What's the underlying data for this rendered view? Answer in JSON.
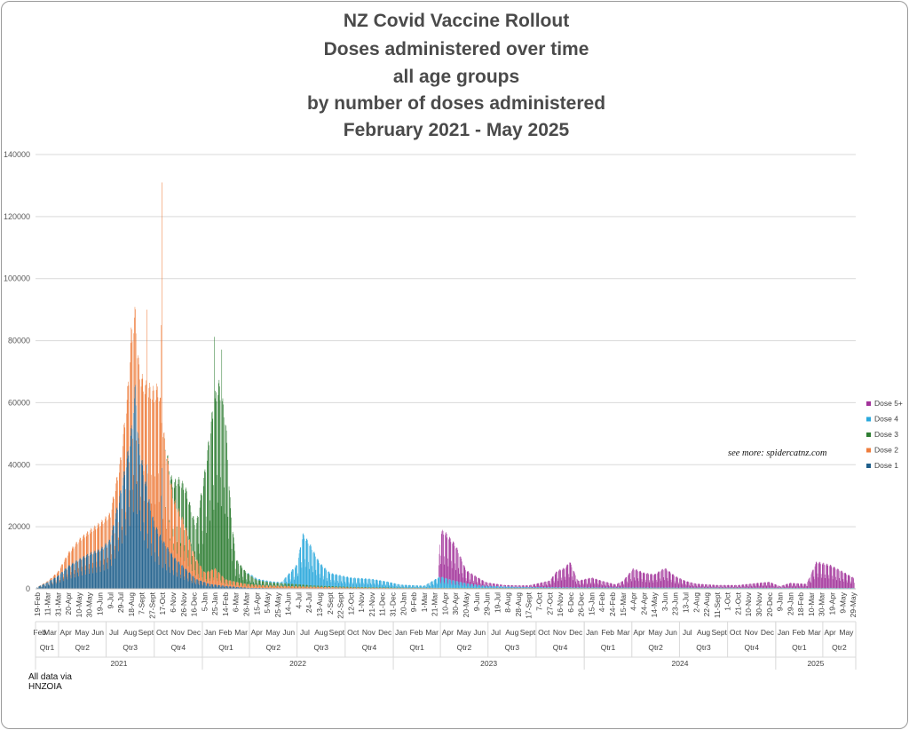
{
  "titles": {
    "line1": "NZ Covid Vaccine Rollout",
    "line2": "Doses administered over time",
    "line3": "all age groups",
    "line4": "by number of doses administered",
    "line5": "February 2021 - May 2025"
  },
  "credit": "see more: spidercatnz.com",
  "source_note": {
    "line1": "All data via",
    "line2": "HNZOIA"
  },
  "colors": {
    "Dose 1": "#1f5f8b",
    "Dose 2": "#ee7d3d",
    "Dose 3": "#2e7d32",
    "Dose 4": "#2aa8dc",
    "Dose 5+": "#a2329a"
  },
  "chart_data": {
    "type": "bar",
    "stacked": true,
    "title": "",
    "xlabel": "",
    "ylabel": "",
    "ylim": [
      0,
      140000
    ],
    "yticks": [
      0,
      20000,
      40000,
      60000,
      80000,
      100000,
      120000,
      140000
    ],
    "grid": "horizontal",
    "legend": "right",
    "series_order": [
      "Dose 1",
      "Dose 2",
      "Dose 3",
      "Dose 4",
      "Dose 5+"
    ],
    "legend_order": [
      "Dose 5+",
      "Dose 4",
      "Dose 3",
      "Dose 2",
      "Dose 1"
    ],
    "x_dates": [
      "2021-02-19",
      "2021-03-11",
      "2021-03-31",
      "2021-04-20",
      "2021-05-10",
      "2021-05-30",
      "2021-06-19",
      "2021-07-09",
      "2021-07-29",
      "2021-08-18",
      "2021-09-07",
      "2021-09-27",
      "2021-10-17",
      "2021-11-06",
      "2021-11-26",
      "2021-12-16",
      "2022-01-05",
      "2022-01-25",
      "2022-02-14",
      "2022-03-06",
      "2022-03-26",
      "2022-04-15",
      "2022-05-05",
      "2022-05-25",
      "2022-06-14",
      "2022-07-04",
      "2022-07-24",
      "2022-08-13",
      "2022-09-02",
      "2022-09-22",
      "2022-10-12",
      "2022-11-01",
      "2022-11-21",
      "2022-12-11",
      "2022-12-31",
      "2023-01-20",
      "2023-02-09",
      "2023-03-01",
      "2023-03-21",
      "2023-04-10",
      "2023-04-30",
      "2023-05-20",
      "2023-06-09",
      "2023-06-29",
      "2023-07-19",
      "2023-08-08",
      "2023-08-28",
      "2023-09-17",
      "2023-10-07",
      "2023-10-27",
      "2023-11-16",
      "2023-12-06",
      "2023-12-26",
      "2024-01-15",
      "2024-02-04",
      "2024-02-24",
      "2024-03-15",
      "2024-04-04",
      "2024-04-24",
      "2024-05-14",
      "2024-06-03",
      "2024-06-23",
      "2024-07-13",
      "2024-08-02",
      "2024-08-22",
      "2024-09-11",
      "2024-10-01",
      "2024-10-21",
      "2024-11-10",
      "2024-11-30",
      "2024-12-20",
      "2025-01-09",
      "2025-01-29",
      "2025-02-18",
      "2025-03-10",
      "2025-03-30",
      "2025-04-19",
      "2025-05-09",
      "2025-05-29"
    ],
    "x_ticks": [
      "19-Feb",
      "11-Mar",
      "31-Mar",
      "20-Apr",
      "10-May",
      "30-May",
      "19-Jun",
      "9-Jul",
      "29-Jul",
      "18-Aug",
      "7-Sept",
      "27-Sept",
      "17-Oct",
      "6-Nov",
      "26-Nov",
      "16-Dec",
      "5-Jan",
      "25-Jan",
      "14-Feb",
      "6-Mar",
      "26-Mar",
      "15-Apr",
      "5-May",
      "25-May",
      "14-Jun",
      "4-Jul",
      "24-Jul",
      "13-Aug",
      "2-Sept",
      "22-Sept",
      "12-Oct",
      "1-Nov",
      "21-Nov",
      "11-Dec",
      "31-Dec",
      "20-Jan",
      "9-Feb",
      "1-Mar",
      "21-Mar",
      "10-Apr",
      "30-Apr",
      "20-May",
      "9-Jun",
      "29-Jun",
      "19-Jul",
      "8-Aug",
      "28-Aug",
      "17-Sept",
      "7-Oct",
      "27-Oct",
      "16-Nov",
      "6-Dec",
      "26-Dec",
      "15-Jan",
      "4-Feb",
      "24-Feb",
      "15-Mar",
      "4-Apr",
      "24-Apr",
      "14-May",
      "3-Jun",
      "23-Jun",
      "13-Jul",
      "2-Aug",
      "22-Aug",
      "11-Sept",
      "1-Oct",
      "21-Oct",
      "10-Nov",
      "30-Nov",
      "20-Dec",
      "9-Jan",
      "29-Jan",
      "18-Feb",
      "10-Mar",
      "30-Mar",
      "19-Apr",
      "9-May",
      "29-May"
    ],
    "month_labels": [
      {
        "label": "Feb",
        "date": "2021-02-24"
      },
      {
        "label": "Mar",
        "date": "2021-03-16"
      },
      {
        "label": "Apr",
        "date": "2021-04-15"
      },
      {
        "label": "May",
        "date": "2021-05-16"
      },
      {
        "label": "Jun",
        "date": "2021-06-15"
      },
      {
        "label": "Jul",
        "date": "2021-07-16"
      },
      {
        "label": "Aug",
        "date": "2021-08-16"
      },
      {
        "label": "Sept",
        "date": "2021-09-15"
      },
      {
        "label": "Oct",
        "date": "2021-10-16"
      },
      {
        "label": "Nov",
        "date": "2021-11-15"
      },
      {
        "label": "Dec",
        "date": "2021-12-16"
      },
      {
        "label": "Jan",
        "date": "2022-01-16"
      },
      {
        "label": "Feb",
        "date": "2022-02-14"
      },
      {
        "label": "Mar",
        "date": "2022-03-16"
      },
      {
        "label": "Apr",
        "date": "2022-04-15"
      },
      {
        "label": "May",
        "date": "2022-05-16"
      },
      {
        "label": "Jun",
        "date": "2022-06-15"
      },
      {
        "label": "Jul",
        "date": "2022-07-16"
      },
      {
        "label": "Aug",
        "date": "2022-08-16"
      },
      {
        "label": "Sept",
        "date": "2022-09-15"
      },
      {
        "label": "Oct",
        "date": "2022-10-16"
      },
      {
        "label": "Nov",
        "date": "2022-11-15"
      },
      {
        "label": "Dec",
        "date": "2022-12-16"
      },
      {
        "label": "Jan",
        "date": "2023-01-16"
      },
      {
        "label": "Feb",
        "date": "2023-02-14"
      },
      {
        "label": "Mar",
        "date": "2023-03-16"
      },
      {
        "label": "Apr",
        "date": "2023-04-15"
      },
      {
        "label": "May",
        "date": "2023-05-16"
      },
      {
        "label": "Jun",
        "date": "2023-06-15"
      },
      {
        "label": "Jul",
        "date": "2023-07-16"
      },
      {
        "label": "Aug",
        "date": "2023-08-16"
      },
      {
        "label": "Sept",
        "date": "2023-09-15"
      },
      {
        "label": "Oct",
        "date": "2023-10-16"
      },
      {
        "label": "Nov",
        "date": "2023-11-15"
      },
      {
        "label": "Dec",
        "date": "2023-12-16"
      },
      {
        "label": "Jan",
        "date": "2024-01-16"
      },
      {
        "label": "Feb",
        "date": "2024-02-15"
      },
      {
        "label": "Mar",
        "date": "2024-03-16"
      },
      {
        "label": "Apr",
        "date": "2024-04-15"
      },
      {
        "label": "May",
        "date": "2024-05-16"
      },
      {
        "label": "Jun",
        "date": "2024-06-15"
      },
      {
        "label": "Jul",
        "date": "2024-07-16"
      },
      {
        "label": "Aug",
        "date": "2024-08-16"
      },
      {
        "label": "Sept",
        "date": "2024-09-15"
      },
      {
        "label": "Oct",
        "date": "2024-10-16"
      },
      {
        "label": "Nov",
        "date": "2024-11-15"
      },
      {
        "label": "Dec",
        "date": "2024-12-16"
      },
      {
        "label": "Jan",
        "date": "2025-01-16"
      },
      {
        "label": "Feb",
        "date": "2025-02-14"
      },
      {
        "label": "Mar",
        "date": "2025-03-16"
      },
      {
        "label": "Apr",
        "date": "2025-04-15"
      },
      {
        "label": "May",
        "date": "2025-05-16"
      }
    ],
    "quarter_labels": [
      {
        "label": "Qtr1",
        "start": "2021-02-16",
        "end": "2021-04-01"
      },
      {
        "label": "Qtr2",
        "start": "2021-04-01",
        "end": "2021-07-01"
      },
      {
        "label": "Qtr3",
        "start": "2021-07-01",
        "end": "2021-10-01"
      },
      {
        "label": "Qtr4",
        "start": "2021-10-01",
        "end": "2022-01-01"
      },
      {
        "label": "Qtr1",
        "start": "2022-01-01",
        "end": "2022-04-01"
      },
      {
        "label": "Qtr2",
        "start": "2022-04-01",
        "end": "2022-07-01"
      },
      {
        "label": "Qtr3",
        "start": "2022-07-01",
        "end": "2022-10-01"
      },
      {
        "label": "Qtr4",
        "start": "2022-10-01",
        "end": "2023-01-01"
      },
      {
        "label": "Qtr1",
        "start": "2023-01-01",
        "end": "2023-04-01"
      },
      {
        "label": "Qtr2",
        "start": "2023-04-01",
        "end": "2023-07-01"
      },
      {
        "label": "Qtr3",
        "start": "2023-07-01",
        "end": "2023-10-01"
      },
      {
        "label": "Qtr4",
        "start": "2023-10-01",
        "end": "2024-01-01"
      },
      {
        "label": "Qtr1",
        "start": "2024-01-01",
        "end": "2024-04-01"
      },
      {
        "label": "Qtr2",
        "start": "2024-04-01",
        "end": "2024-07-01"
      },
      {
        "label": "Qtr3",
        "start": "2024-07-01",
        "end": "2024-10-01"
      },
      {
        "label": "Qtr4",
        "start": "2024-10-01",
        "end": "2025-01-01"
      },
      {
        "label": "Qtr1",
        "start": "2025-01-01",
        "end": "2025-04-01"
      },
      {
        "label": "Qtr2",
        "start": "2025-04-01",
        "end": "2025-06-03"
      }
    ],
    "year_labels": [
      {
        "label": "2021",
        "start": "2021-02-16",
        "end": "2022-01-01"
      },
      {
        "label": "2022",
        "start": "2022-01-01",
        "end": "2023-01-01"
      },
      {
        "label": "2023",
        "start": "2023-01-01",
        "end": "2024-01-01"
      },
      {
        "label": "2024",
        "start": "2024-01-01",
        "end": "2025-01-01"
      },
      {
        "label": "2025",
        "start": "2025-01-01",
        "end": "2025-06-03"
      }
    ],
    "x_domain": [
      "2021-02-16",
      "2025-06-03"
    ],
    "data_range": [
      "2021-02-19",
      "2025-05-31"
    ],
    "curves": {
      "Dose 1": [
        [
          "2021-02-19",
          500
        ],
        [
          "2021-03-11",
          2000
        ],
        [
          "2021-03-31",
          4000
        ],
        [
          "2021-04-20",
          7000
        ],
        [
          "2021-05-10",
          9000
        ],
        [
          "2021-06-01",
          11000
        ],
        [
          "2021-06-19",
          12000
        ],
        [
          "2021-07-09",
          15000
        ],
        [
          "2021-07-29",
          30000
        ],
        [
          "2021-08-10",
          40000
        ],
        [
          "2021-08-18",
          48000
        ],
        [
          "2021-08-26",
          62000
        ],
        [
          "2021-09-01",
          45000
        ],
        [
          "2021-09-15",
          32000
        ],
        [
          "2021-10-01",
          20000
        ],
        [
          "2021-10-17",
          15000
        ],
        [
          "2021-11-06",
          10000
        ],
        [
          "2021-12-01",
          6000
        ],
        [
          "2021-12-20",
          3000
        ],
        [
          "2022-01-15",
          1500
        ],
        [
          "2022-02-20",
          800
        ],
        [
          "2022-04-01",
          300
        ],
        [
          "2022-07-01",
          150
        ],
        [
          "2022-12-31",
          80
        ],
        [
          "2023-06-01",
          60
        ],
        [
          "2025-05-31",
          40
        ]
      ],
      "Dose 2": [
        [
          "2021-02-19",
          0
        ],
        [
          "2021-03-11",
          300
        ],
        [
          "2021-03-31",
          1200
        ],
        [
          "2021-04-20",
          4000
        ],
        [
          "2021-05-10",
          6000
        ],
        [
          "2021-06-01",
          7000
        ],
        [
          "2021-06-19",
          8000
        ],
        [
          "2021-07-09",
          8000
        ],
        [
          "2021-07-29",
          10000
        ],
        [
          "2021-08-10",
          18000
        ],
        [
          "2021-08-18",
          30000
        ],
        [
          "2021-08-26",
          23000
        ],
        [
          "2021-09-07",
          25000
        ],
        [
          "2021-09-27",
          38000
        ],
        [
          "2021-10-10",
          45000
        ],
        [
          "2021-10-17",
          35000
        ],
        [
          "2021-11-06",
          18000
        ],
        [
          "2021-11-26",
          14000
        ],
        [
          "2021-12-16",
          7000
        ],
        [
          "2022-01-05",
          3000
        ],
        [
          "2022-01-25",
          5000
        ],
        [
          "2022-02-14",
          2000
        ],
        [
          "2022-03-20",
          1200
        ],
        [
          "2022-05-01",
          800
        ],
        [
          "2022-07-01",
          600
        ],
        [
          "2022-10-01",
          300
        ],
        [
          "2023-01-01",
          150
        ],
        [
          "2025-05-31",
          60
        ]
      ],
      "Dose 3": [
        [
          "2021-02-19",
          0
        ],
        [
          "2021-10-20",
          0
        ],
        [
          "2021-11-01",
          1500
        ],
        [
          "2021-11-15",
          9000
        ],
        [
          "2021-12-01",
          12000
        ],
        [
          "2021-12-20",
          10000
        ],
        [
          "2022-01-05",
          30000
        ],
        [
          "2022-01-20",
          48000
        ],
        [
          "2022-02-01",
          58000
        ],
        [
          "2022-02-14",
          50000
        ],
        [
          "2022-02-24",
          22000
        ],
        [
          "2022-03-06",
          7000
        ],
        [
          "2022-03-26",
          3500
        ],
        [
          "2022-04-15",
          1500
        ],
        [
          "2022-05-15",
          900
        ],
        [
          "2022-07-01",
          700
        ],
        [
          "2022-08-01",
          400
        ],
        [
          "2022-10-01",
          250
        ],
        [
          "2023-01-01",
          150
        ],
        [
          "2023-04-01",
          100
        ],
        [
          "2025-05-31",
          60
        ]
      ],
      "Dose 4": [
        [
          "2021-02-19",
          0
        ],
        [
          "2022-03-25",
          0
        ],
        [
          "2022-04-05",
          400
        ],
        [
          "2022-06-01",
          300
        ],
        [
          "2022-07-01",
          6000
        ],
        [
          "2022-07-12",
          15500
        ],
        [
          "2022-07-24",
          13000
        ],
        [
          "2022-08-13",
          7000
        ],
        [
          "2022-09-02",
          4000
        ],
        [
          "2022-10-12",
          2800
        ],
        [
          "2022-11-21",
          2500
        ],
        [
          "2022-12-20",
          1800
        ],
        [
          "2023-01-15",
          900
        ],
        [
          "2023-03-01",
          600
        ],
        [
          "2023-04-01",
          3500
        ],
        [
          "2023-04-20",
          2500
        ],
        [
          "2023-05-20",
          1400
        ],
        [
          "2023-06-20",
          700
        ],
        [
          "2023-09-01",
          300
        ],
        [
          "2023-12-01",
          200
        ],
        [
          "2025-05-31",
          100
        ]
      ],
      "Dose 5+": [
        [
          "2021-02-19",
          0
        ],
        [
          "2023-03-28",
          0
        ],
        [
          "2023-04-01",
          14000
        ],
        [
          "2023-04-10",
          14000
        ],
        [
          "2023-04-30",
          11000
        ],
        [
          "2023-05-20",
          4000
        ],
        [
          "2023-06-09",
          2500
        ],
        [
          "2023-06-29",
          1000
        ],
        [
          "2023-08-01",
          400
        ],
        [
          "2023-09-17",
          500
        ],
        [
          "2023-10-27",
          2000
        ],
        [
          "2023-11-10",
          5000
        ],
        [
          "2023-11-26",
          6000
        ],
        [
          "2023-12-04",
          8000
        ],
        [
          "2023-12-20",
          2000
        ],
        [
          "2024-01-15",
          3000
        ],
        [
          "2024-02-04",
          2000
        ],
        [
          "2024-03-01",
          900
        ],
        [
          "2024-03-15",
          2000
        ],
        [
          "2024-04-04",
          5800
        ],
        [
          "2024-04-24",
          4500
        ],
        [
          "2024-05-14",
          4000
        ],
        [
          "2024-06-03",
          6000
        ],
        [
          "2024-06-23",
          3500
        ],
        [
          "2024-07-13",
          2000
        ],
        [
          "2024-08-02",
          1200
        ],
        [
          "2024-09-11",
          800
        ],
        [
          "2024-10-21",
          800
        ],
        [
          "2024-11-30",
          1500
        ],
        [
          "2024-12-20",
          1800
        ],
        [
          "2025-01-09",
          500
        ],
        [
          "2025-01-29",
          1500
        ],
        [
          "2025-03-01",
          1200
        ],
        [
          "2025-03-20",
          8000
        ],
        [
          "2025-04-15",
          7000
        ],
        [
          "2025-05-09",
          5000
        ],
        [
          "2025-05-31",
          3000
        ]
      ]
    },
    "notable_days": [
      {
        "date": "2021-09-17",
        "Dose 1": 40000,
        "Dose 2": 50000
      },
      {
        "date": "2021-10-16",
        "Dose 1": 39000,
        "Dose 2": 92000
      },
      {
        "date": "2021-10-14",
        "Dose 1": 30000,
        "Dose 2": 55000
      },
      {
        "date": "2022-01-24",
        "Dose 3": 75000
      },
      {
        "date": "2022-02-07",
        "Dose 3": 73000
      }
    ],
    "weekly_pattern": [
      1.0,
      1.05,
      1.08,
      1.06,
      1.0,
      0.6,
      0.45
    ]
  }
}
